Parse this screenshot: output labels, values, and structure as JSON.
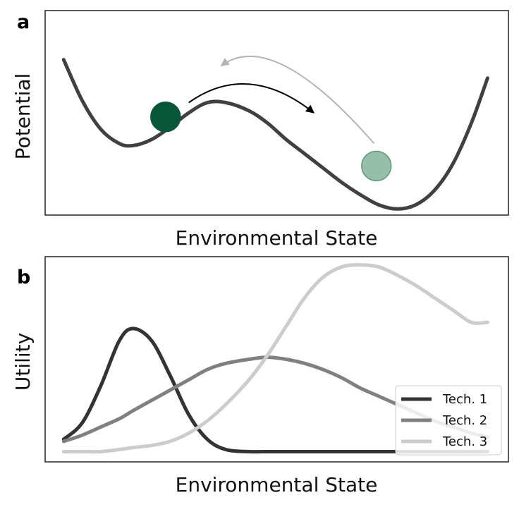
{
  "chart_data": [
    {
      "panel": "a",
      "type": "line",
      "xlabel": "Environmental State",
      "ylabel": "Potential",
      "xlim": [
        0,
        1
      ],
      "ylim": [
        0,
        1
      ],
      "grid": false,
      "series": [
        {
          "color": "#404040",
          "x": [
            0.04,
            0.08,
            0.12,
            0.16,
            0.19,
            0.23,
            0.27,
            0.31,
            0.35,
            0.39,
            0.44,
            0.48,
            0.52,
            0.56,
            0.6,
            0.64,
            0.68,
            0.72,
            0.76,
            0.8,
            0.84,
            0.88,
            0.92,
            0.955
          ],
          "y": [
            0.76,
            0.56,
            0.42,
            0.35,
            0.34,
            0.37,
            0.43,
            0.5,
            0.55,
            0.55,
            0.51,
            0.45,
            0.37,
            0.3,
            0.23,
            0.16,
            0.1,
            0.05,
            0.03,
            0.05,
            0.12,
            0.25,
            0.45,
            0.67
          ]
        }
      ],
      "markers": [
        {
          "x": 0.26,
          "y": 0.48,
          "color": "#08563a",
          "opacity": 1.0
        },
        {
          "x": 0.715,
          "y": 0.24,
          "color": "#2f7d57",
          "opacity": 0.5
        }
      ],
      "arrows": [
        {
          "from": [
            0.31,
            0.55
          ],
          "to": [
            0.58,
            0.5
          ],
          "color": "#000000"
        },
        {
          "from": [
            0.71,
            0.35
          ],
          "to": [
            0.38,
            0.73
          ],
          "color": "#b3b3b3"
        }
      ]
    },
    {
      "panel": "b",
      "type": "line",
      "xlabel": "Environmental State",
      "ylabel": "Utility",
      "xlim": [
        0,
        1
      ],
      "ylim": [
        0,
        1
      ],
      "grid": false,
      "legend_position": "bottom-right",
      "series": [
        {
          "name": "Tech. 1",
          "color": "#333333",
          "x": [
            0.04,
            0.08,
            0.12,
            0.16,
            0.19,
            0.23,
            0.27,
            0.31,
            0.35,
            0.39,
            0.44,
            0.48,
            0.52,
            0.56,
            0.6,
            0.64,
            0.68,
            0.72,
            0.76,
            0.8,
            0.84,
            0.88,
            0.92,
            0.955
          ],
          "y": [
            0.11,
            0.19,
            0.37,
            0.59,
            0.65,
            0.59,
            0.42,
            0.23,
            0.11,
            0.06,
            0.05,
            0.05,
            0.05,
            0.05,
            0.05,
            0.05,
            0.05,
            0.05,
            0.05,
            0.05,
            0.05,
            0.05,
            0.05,
            0.05
          ]
        },
        {
          "name": "Tech. 2",
          "color": "#808080",
          "x": [
            0.04,
            0.08,
            0.12,
            0.16,
            0.19,
            0.23,
            0.27,
            0.31,
            0.35,
            0.39,
            0.44,
            0.48,
            0.52,
            0.56,
            0.6,
            0.64,
            0.68,
            0.72,
            0.76,
            0.8,
            0.84,
            0.88,
            0.92,
            0.955
          ],
          "y": [
            0.1,
            0.13,
            0.17,
            0.21,
            0.25,
            0.3,
            0.35,
            0.4,
            0.45,
            0.48,
            0.5,
            0.51,
            0.5,
            0.48,
            0.45,
            0.41,
            0.36,
            0.32,
            0.28,
            0.24,
            0.2,
            0.17,
            0.14,
            0.12
          ]
        },
        {
          "name": "Tech. 3",
          "color": "#cccccc",
          "x": [
            0.04,
            0.08,
            0.12,
            0.16,
            0.19,
            0.23,
            0.27,
            0.31,
            0.35,
            0.39,
            0.44,
            0.48,
            0.52,
            0.56,
            0.6,
            0.64,
            0.68,
            0.72,
            0.76,
            0.8,
            0.84,
            0.88,
            0.92,
            0.955
          ],
          "y": [
            0.05,
            0.05,
            0.05,
            0.06,
            0.07,
            0.08,
            0.1,
            0.14,
            0.2,
            0.28,
            0.4,
            0.52,
            0.66,
            0.8,
            0.9,
            0.95,
            0.96,
            0.95,
            0.91,
            0.86,
            0.8,
            0.74,
            0.68,
            0.68
          ]
        }
      ]
    }
  ]
}
